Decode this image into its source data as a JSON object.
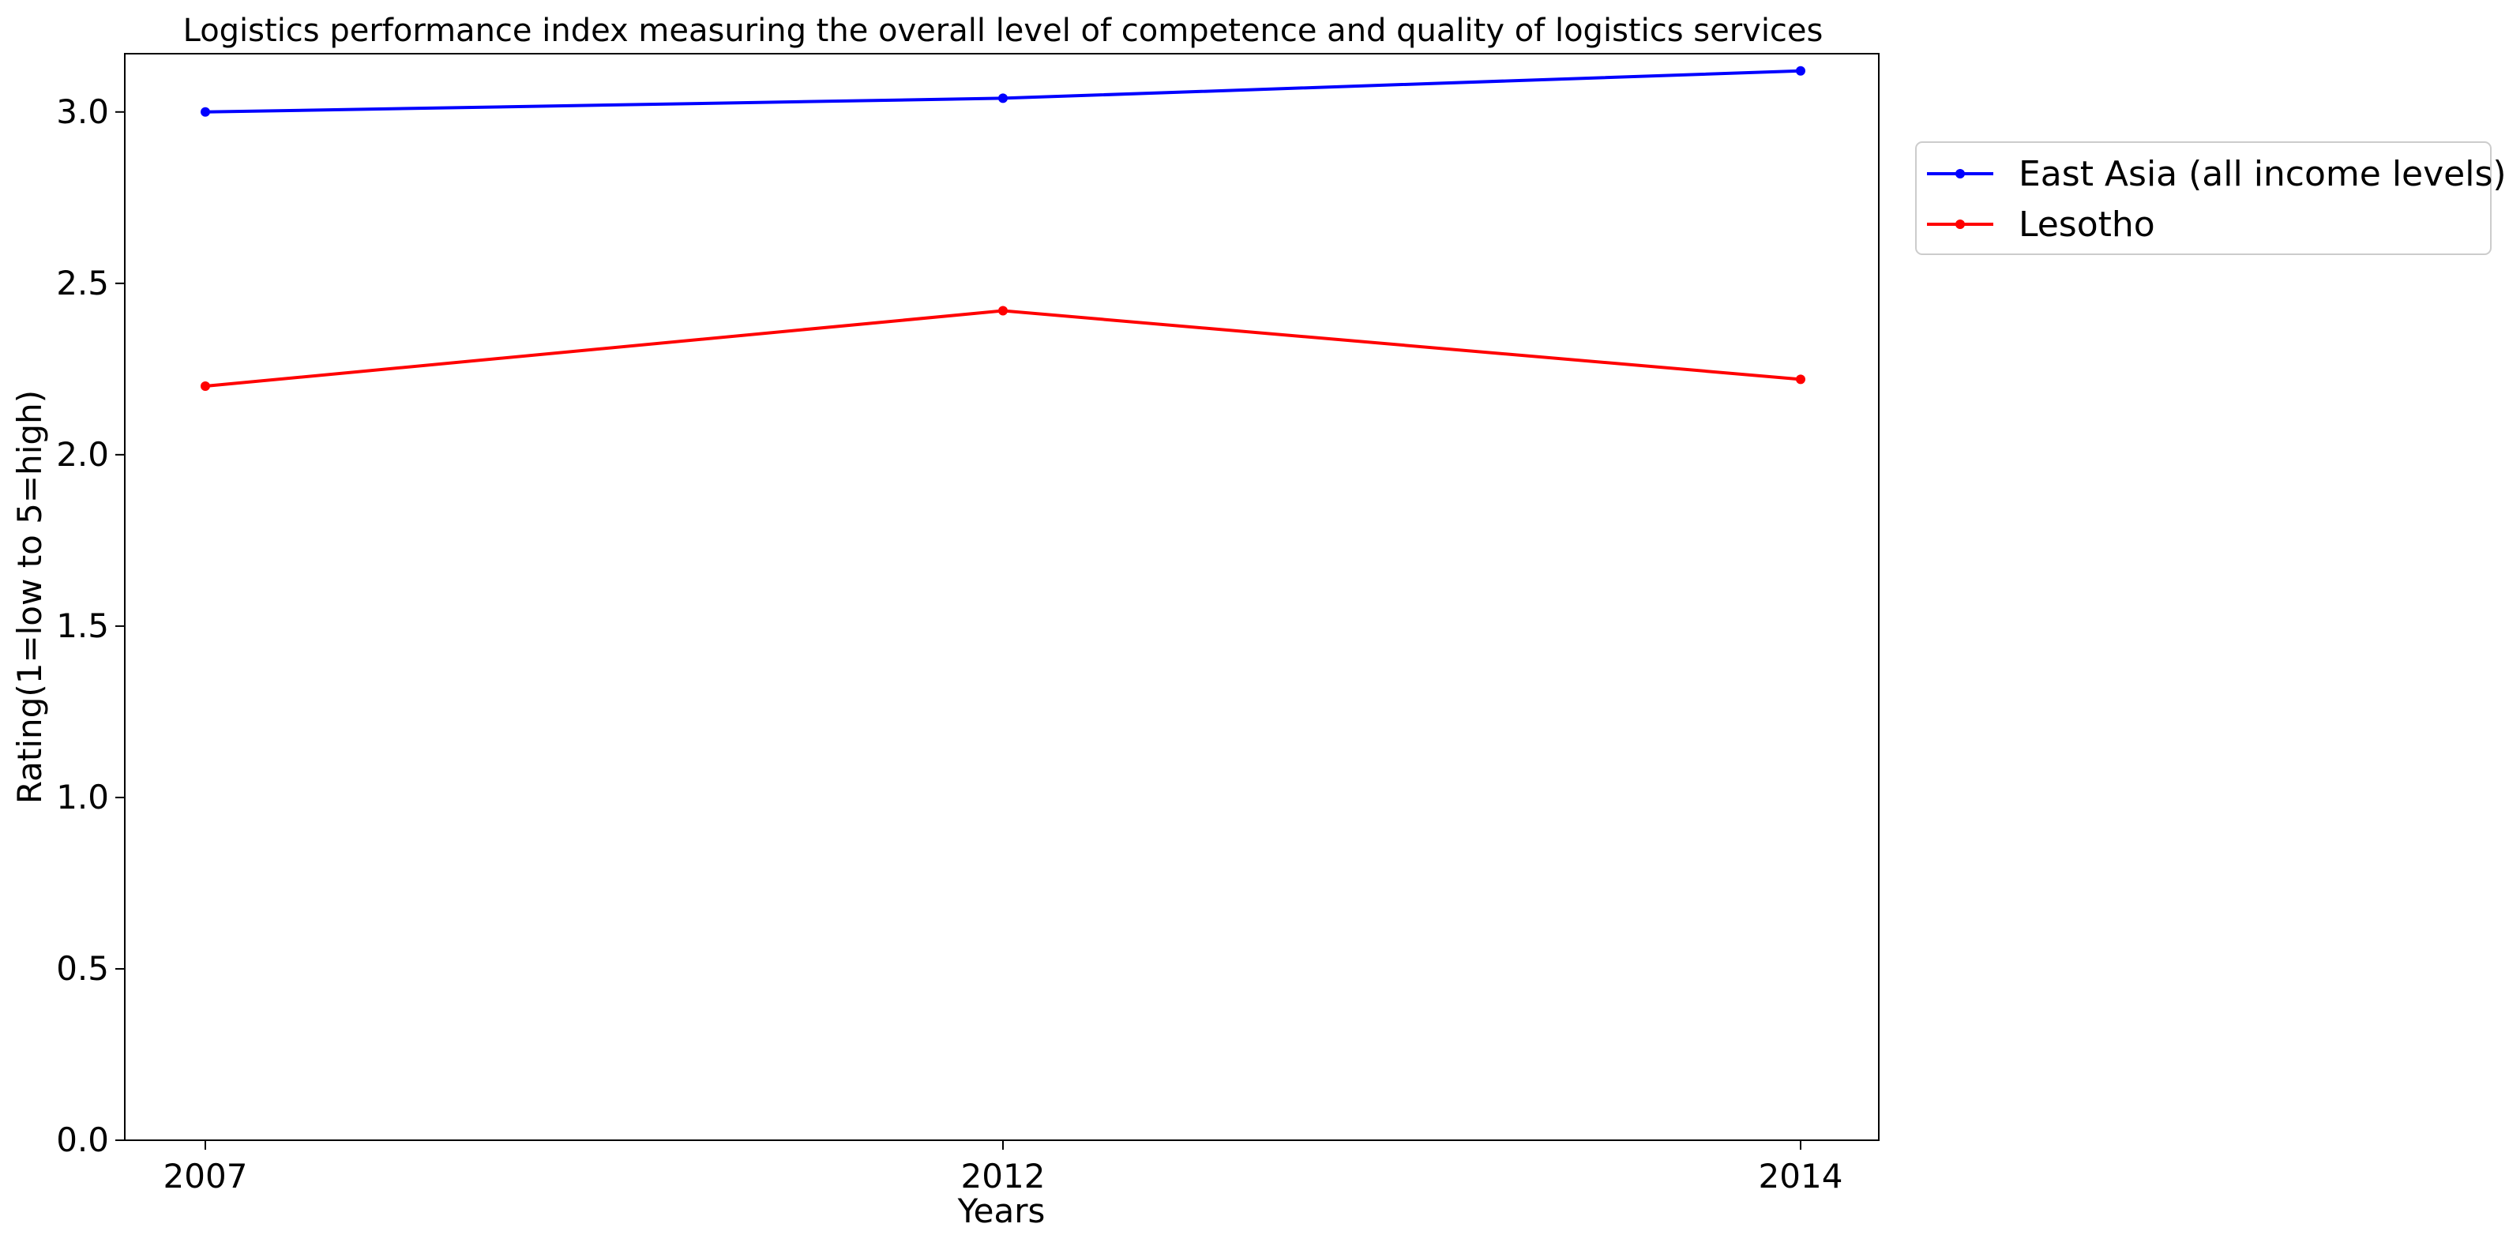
{
  "chart_data": {
    "type": "line",
    "title": "Logistics performance index measuring the overall level of competence and quality of logistics services",
    "xlabel": "Years",
    "ylabel": "Rating(1=low to 5=high)",
    "categories": [
      "2007",
      "2012",
      "2014"
    ],
    "ylim": [
      0,
      3.17
    ],
    "yticks": [
      "0.0",
      "0.5",
      "1.0",
      "1.5",
      "2.0",
      "2.5",
      "3.0"
    ],
    "grid": false,
    "legend_position": "outside-top-right",
    "series": [
      {
        "name": "East Asia (all income levels)",
        "color": "#0000ff",
        "values": [
          3.0,
          3.04,
          3.12
        ]
      },
      {
        "name": "Lesotho",
        "color": "#ff0000",
        "values": [
          2.2,
          2.42,
          2.22
        ]
      }
    ]
  }
}
